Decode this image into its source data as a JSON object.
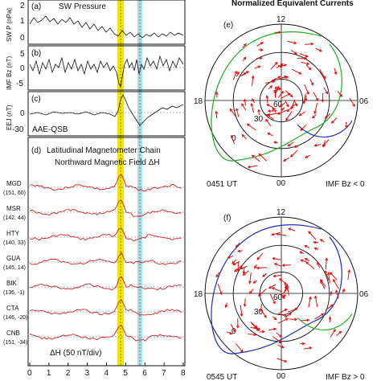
{
  "left": {
    "panel_a": {
      "letter": "(a)",
      "title": "SW Pressure",
      "ylabel": "SW P (nPa)",
      "ticks": [
        "2",
        "1",
        "0"
      ]
    },
    "panel_b": {
      "letter": "(b)",
      "ylabel": "IMF Bz (nT)",
      "ticks": [
        "5",
        "0",
        "-5"
      ]
    },
    "panel_c": {
      "letter": "(c)",
      "label": "AAE-QSB",
      "ylabel": "EEJ (nT)",
      "ticks": [
        "0",
        "-30"
      ]
    },
    "panel_d": {
      "letter": "(d)",
      "title_line1": "Latitudinal Magnetometer Chain",
      "title_line2": "Northward Magnetic Field  ΔH",
      "scale_label": "ΔH (50 nT/div)",
      "stations": [
        {
          "name": "MGD",
          "coords": "(151, 60)"
        },
        {
          "name": "MSR",
          "coords": "(142, 44)"
        },
        {
          "name": "HTY",
          "coords": "(140, 33)"
        },
        {
          "name": "GUA",
          "coords": "(145, 14)"
        },
        {
          "name": "BIK",
          "coords": "(136, -1)"
        },
        {
          "name": "CTA",
          "coords": "(146, -20)"
        },
        {
          "name": "CNB",
          "coords": "(151, -34)"
        }
      ]
    },
    "x_ticks": [
      "0",
      "1",
      "2",
      "3",
      "4",
      "5",
      "6",
      "7",
      "8"
    ],
    "highlights": {
      "yellow_hour": 4.9,
      "cyan_hour": 5.8
    },
    "colors": {
      "yellow": "#f2e600",
      "cyan": "#a8e0f0",
      "station_line": "#d22020",
      "data_line": "#111111"
    }
  },
  "right": {
    "title": "Normalized Equivalent Currents",
    "panel_e": {
      "letter": "(e)",
      "time": "0451 UT",
      "imf": "IMF Bz < 0",
      "top": "12",
      "left": "18",
      "right": "06",
      "bottom": "00",
      "lat60": "60",
      "lat30": "30",
      "lat0": "0"
    },
    "panel_f": {
      "letter": "(f)",
      "time": "0545 UT",
      "imf": "IMF Bz > 0",
      "top": "12",
      "left": "18",
      "right": "06",
      "bottom": "00",
      "lat60": "60",
      "lat30": "30",
      "lat0": "0"
    },
    "colors": {
      "arrow": "#e01010",
      "green": "#22b022",
      "blue": "#2030c0"
    }
  }
}
